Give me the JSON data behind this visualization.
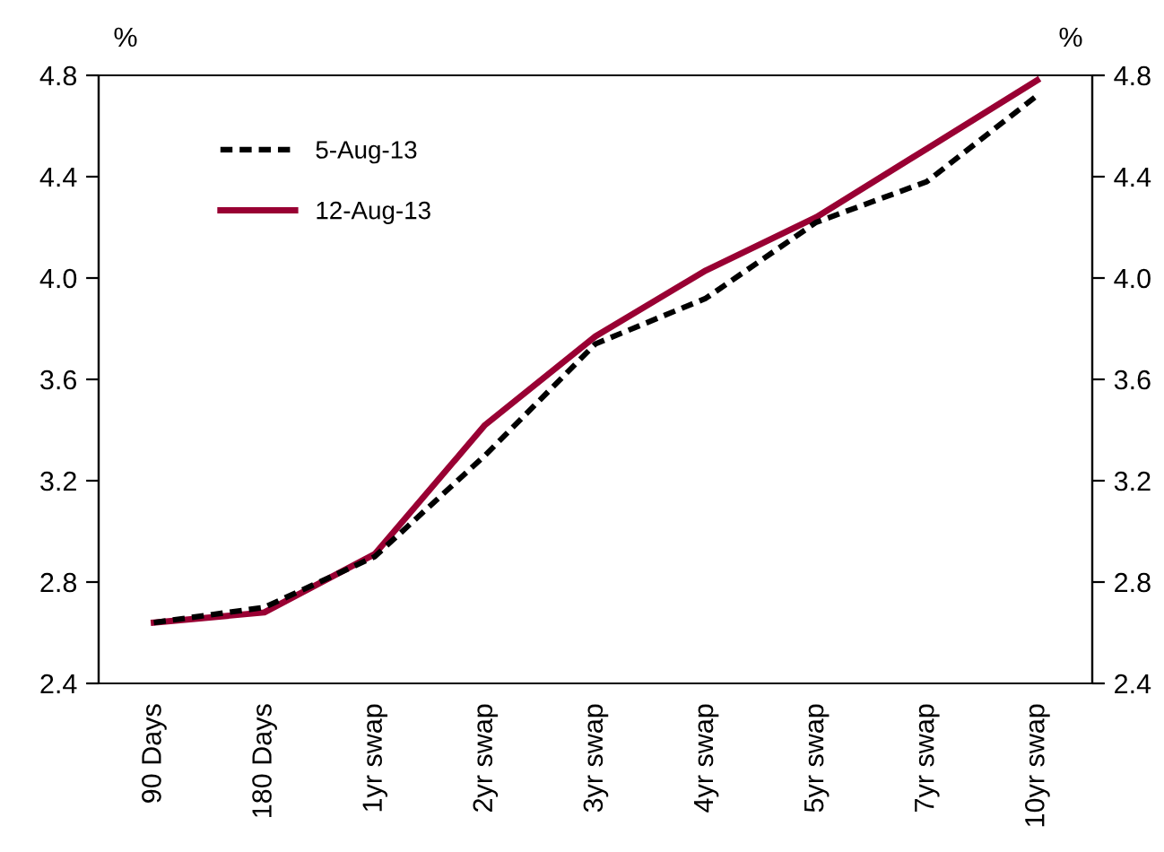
{
  "chart_data": {
    "type": "line",
    "ylabel": "%",
    "y2label": "%",
    "categories": [
      "90 Days",
      "180 Days",
      "1yr swap",
      "2yr swap",
      "3yr swap",
      "4yr swap",
      "5yr swap",
      "7yr swap",
      "10yr swap"
    ],
    "series": [
      {
        "name": "5-Aug-13",
        "color": "#000000",
        "line_style": "dashed",
        "values": [
          2.64,
          2.7,
          2.9,
          3.3,
          3.74,
          3.92,
          4.22,
          4.38,
          4.72
        ]
      },
      {
        "name": "12-Aug-13",
        "color": "#990033",
        "line_style": "solid",
        "values": [
          2.64,
          2.68,
          2.91,
          3.42,
          3.77,
          4.03,
          4.24,
          4.51,
          4.78
        ]
      }
    ],
    "ylim": [
      2.4,
      4.8
    ],
    "yticks": [
      {
        "value": 2.4,
        "label": "2.4"
      },
      {
        "value": 2.8,
        "label": "2.8"
      },
      {
        "value": 3.2,
        "label": "3.2"
      },
      {
        "value": 3.6,
        "label": "3.6"
      },
      {
        "value": 4.0,
        "label": "4.0"
      },
      {
        "value": 4.4,
        "label": "4.4"
      },
      {
        "value": 4.8,
        "label": "4.8"
      }
    ],
    "y2lim": [
      2.4,
      4.8
    ],
    "y2ticks": [
      {
        "value": 2.4,
        "label": "2.4"
      },
      {
        "value": 2.8,
        "label": "2.8"
      },
      {
        "value": 3.2,
        "label": "3.2"
      },
      {
        "value": 3.6,
        "label": "3.6"
      },
      {
        "value": 4.0,
        "label": "4.0"
      },
      {
        "value": 4.4,
        "label": "4.4"
      },
      {
        "value": 4.8,
        "label": "4.8"
      }
    ],
    "grid": false,
    "legend": "top left",
    "marker": "none"
  }
}
